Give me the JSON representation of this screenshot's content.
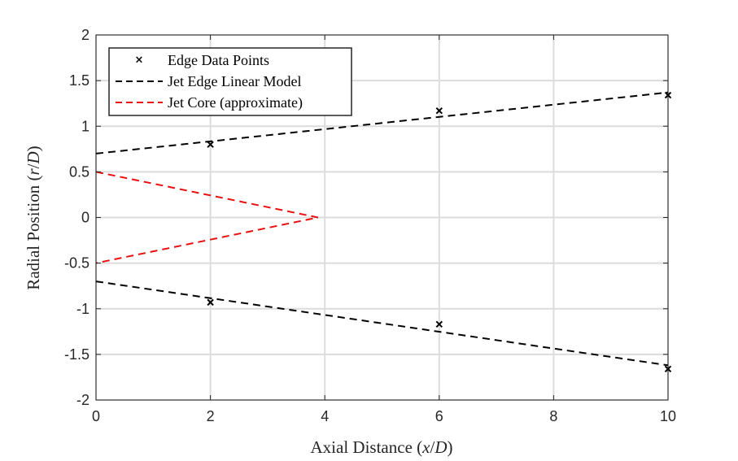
{
  "chart_data": {
    "type": "line",
    "xlabel": "Axial Distance (x/D)",
    "ylabel": "Radial Position (r/D)",
    "xlim": [
      0,
      10
    ],
    "ylim": [
      -2,
      2
    ],
    "xticks": [
      "0",
      "2",
      "4",
      "6",
      "8",
      "10"
    ],
    "yticks": [
      "2",
      "1.5",
      "1",
      "0.5",
      "0",
      "-0.5",
      "-1",
      "-1.5",
      "-2"
    ],
    "grid": true,
    "legend": {
      "placement": "top-left",
      "entries": [
        "Edge Data Points",
        "Jet Edge Linear Model",
        "Jet Core (approximate)"
      ]
    },
    "series": [
      {
        "name": "Edge Data Points",
        "style": "markers-x",
        "color": "#000000",
        "points": [
          {
            "x": 2,
            "y": 0.8
          },
          {
            "x": 6,
            "y": 1.17
          },
          {
            "x": 10,
            "y": 1.34
          },
          {
            "x": 2,
            "y": -0.93
          },
          {
            "x": 6,
            "y": -1.17
          },
          {
            "x": 10,
            "y": -1.66
          }
        ]
      },
      {
        "name": "Jet Edge Linear Model",
        "style": "dashed",
        "color": "#000000",
        "lines": [
          [
            {
              "x": 0,
              "y": 0.7
            },
            {
              "x": 10,
              "y": 1.37
            }
          ],
          [
            {
              "x": 0,
              "y": -0.7
            },
            {
              "x": 10,
              "y": -1.62
            }
          ]
        ]
      },
      {
        "name": "Jet Core (approximate)",
        "style": "dashed",
        "color": "#e81010",
        "lines": [
          [
            {
              "x": 0,
              "y": 0.5
            },
            {
              "x": 3.88,
              "y": 0
            },
            {
              "x": 0,
              "y": -0.5
            }
          ]
        ]
      }
    ]
  }
}
